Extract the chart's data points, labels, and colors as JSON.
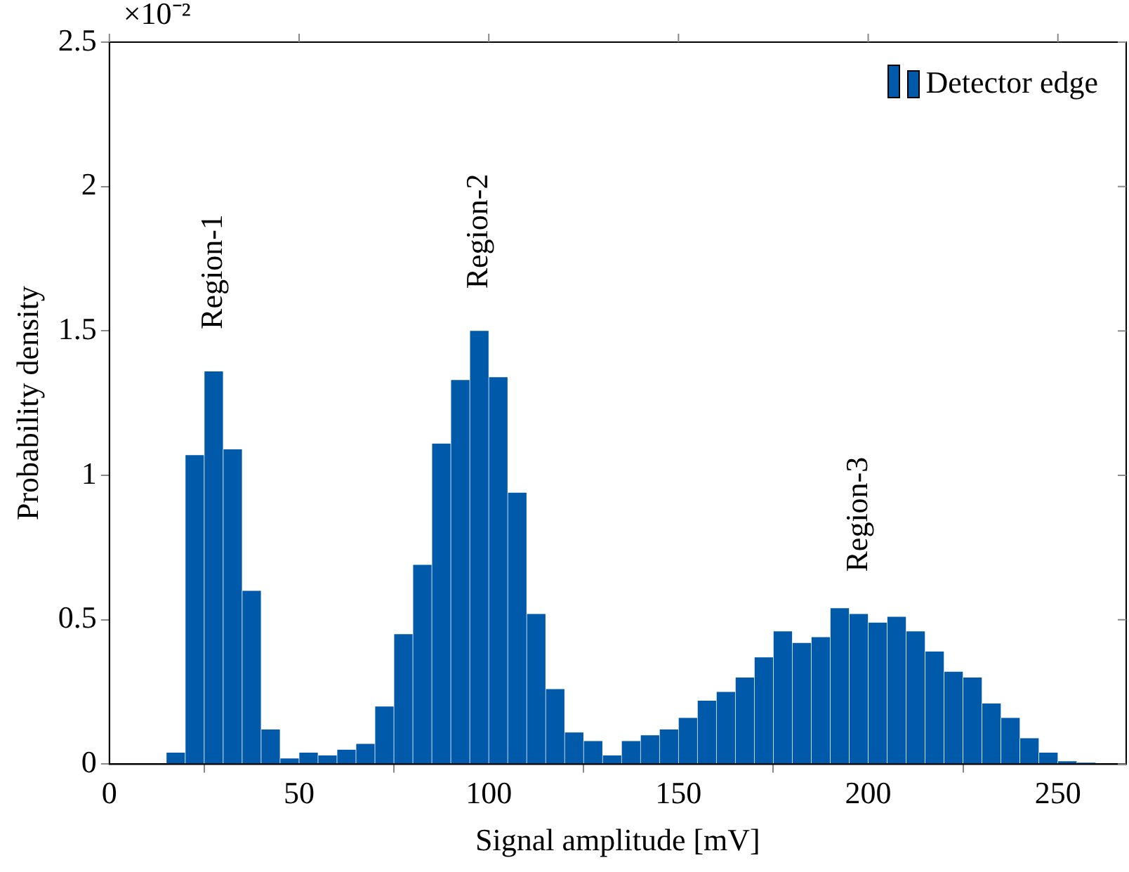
{
  "chart_data": {
    "type": "histogram",
    "xlabel": "Signal amplitude [mV]",
    "ylabel": "Probability density",
    "bins": [
      15,
      20,
      25,
      30,
      35,
      40,
      45,
      50,
      55,
      60,
      65,
      70,
      75,
      80,
      85,
      90,
      95,
      100,
      105,
      110,
      115,
      120,
      125,
      130,
      135,
      140,
      145,
      150,
      155,
      160,
      165,
      170,
      175,
      180,
      185,
      190,
      195,
      200,
      205,
      210,
      215,
      220,
      225,
      230,
      235,
      240,
      245,
      250,
      255,
      260
    ],
    "series": [
      {
        "name": "Detector edge",
        "color": "#005aa9",
        "values": [
          0.04,
          1.07,
          1.36,
          1.09,
          0.6,
          0.12,
          0.02,
          0.04,
          0.03,
          0.05,
          0.07,
          0.2,
          0.45,
          0.69,
          1.11,
          1.33,
          1.5,
          1.34,
          0.94,
          0.52,
          0.26,
          0.11,
          0.08,
          0.03,
          0.08,
          0.1,
          0.12,
          0.16,
          0.22,
          0.25,
          0.3,
          0.37,
          0.46,
          0.42,
          0.44,
          0.54,
          0.52,
          0.49,
          0.51,
          0.46,
          0.39,
          0.32,
          0.3,
          0.21,
          0.16,
          0.09,
          0.04,
          0.01,
          0.005
        ]
      }
    ],
    "xlim": [
      0,
      268
    ],
    "xticks": [
      0,
      50,
      100,
      150,
      200,
      250
    ],
    "ylim": [
      0,
      2.5
    ],
    "yticks": [
      0,
      0.5,
      1,
      1.5,
      2,
      2.5
    ],
    "grid": false,
    "legend": "top right",
    "annotations": [
      "×10⁻²",
      {
        "text": "Region-1",
        "x": 27.5,
        "y": 1.36
      },
      {
        "text": "Region-2",
        "x": 97.5,
        "y": 1.5
      },
      {
        "text": "Region-3",
        "x": 197.5,
        "y": 0.52
      }
    ]
  }
}
